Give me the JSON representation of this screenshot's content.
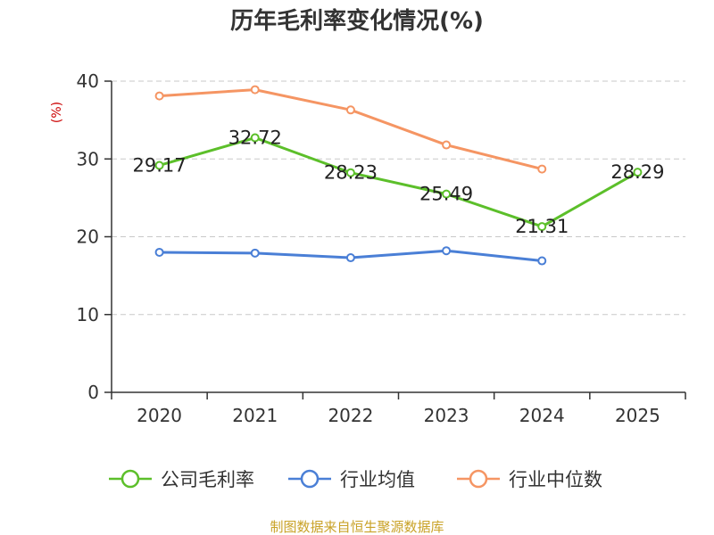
{
  "chart_data": {
    "type": "line",
    "title": "历年毛利率变化情况(%)",
    "ylabel": "(%)",
    "xlabel": "",
    "categories": [
      "2020",
      "2021",
      "2022",
      "2023",
      "2024",
      "2025"
    ],
    "ylim": [
      0,
      40
    ],
    "yticks": [
      "0",
      "10",
      "20",
      "30",
      "40"
    ],
    "grid": true,
    "legend_position": "bottom",
    "series": [
      {
        "name": "公司毛利率",
        "color": "#5cbf2a",
        "values": [
          29.17,
          32.72,
          28.23,
          25.49,
          21.31,
          28.29
        ],
        "labels": [
          "29.17",
          "32.72",
          "28.23",
          "25.49",
          "21.31",
          "28.29"
        ]
      },
      {
        "name": "行业均值",
        "color": "#4a7fd6",
        "values": [
          18.0,
          17.9,
          17.3,
          18.2,
          16.9,
          null
        ]
      },
      {
        "name": "行业中位数",
        "color": "#f59563",
        "values": [
          38.1,
          38.9,
          36.3,
          31.8,
          28.7,
          null
        ]
      }
    ]
  },
  "source": {
    "text": "制图数据来自恒生聚源数据库",
    "color": "#c9a227"
  }
}
